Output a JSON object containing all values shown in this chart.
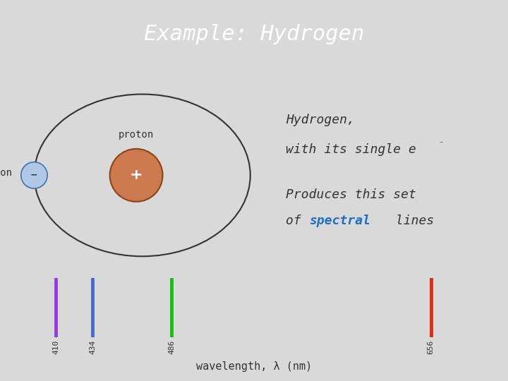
{
  "title": "Example: Hydrogen",
  "title_bg": "#1F4E79",
  "title_color": "#FFFFFF",
  "slide_bg": "#D9D9D9",
  "atom_panel_bg": "#E8E4D8",
  "text_panel_bg": "#E8E4D8",
  "spectral_lines": [
    {
      "wavelength": 410,
      "color": "#9B30FF"
    },
    {
      "wavelength": 434,
      "color": "#4169E1"
    },
    {
      "wavelength": 486,
      "color": "#00CC00"
    },
    {
      "wavelength": 656,
      "color": "#FF2200"
    }
  ],
  "spectral_bg": "#000000",
  "proton_color": "#CD7A50",
  "proton_border": "#8B4513",
  "electron_color": "#B0C8E8",
  "electron_border": "#4A6FA5",
  "orbit_color": "#333333",
  "text1_line1": "Hydrogen,",
  "text1_line2": "with its single e",
  "text2_line1": "Produces this set",
  "text2_of": "of ",
  "text2_word": "spectral",
  "text2_lines": " lines",
  "text_color": "#333333",
  "spectral_word_color": "#1F6FBF",
  "wavelength_labels": [
    "410",
    "434",
    "486",
    "656"
  ],
  "xlabel": "wavelength, λ (nm)",
  "wl_min": 380,
  "wl_max": 700
}
